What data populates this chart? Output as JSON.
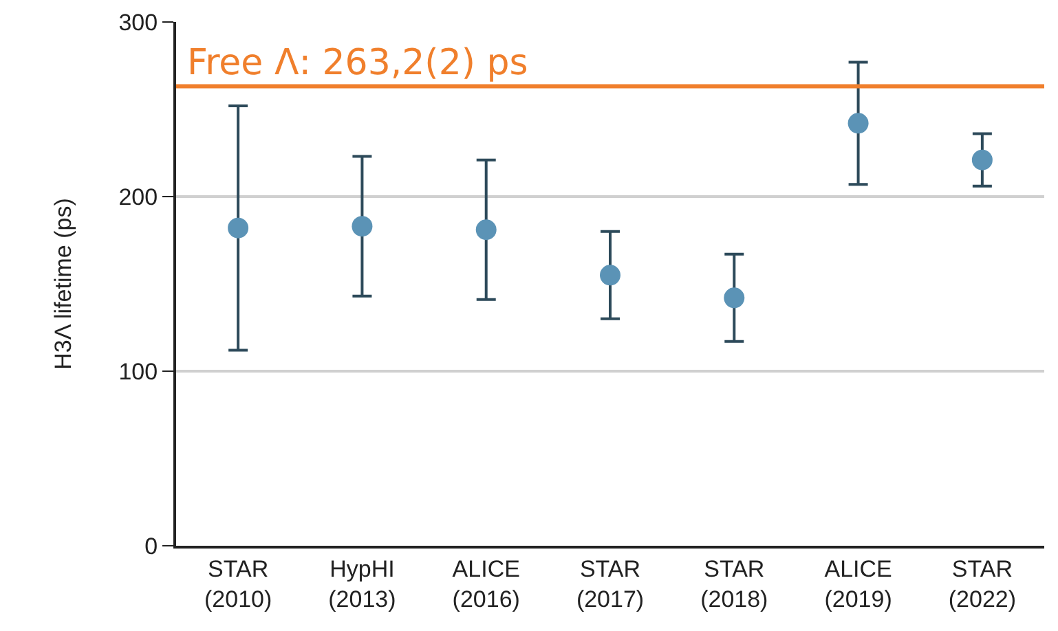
{
  "chart_data": {
    "type": "scatter",
    "ylabel": "H3Λ lifetime (ps)",
    "categories": [
      "STAR\n(2010)",
      "HypHI\n(2013)",
      "ALICE\n(2016)",
      "STAR\n(2017)",
      "STAR\n(2018)",
      "ALICE\n(2019)",
      "STAR\n(2022)"
    ],
    "series": [
      {
        "color": "#5b93b6",
        "values": [
          182,
          183,
          181,
          155,
          142,
          242,
          221
        ],
        "errors": [
          70,
          40,
          40,
          25,
          25,
          35,
          15
        ]
      }
    ],
    "ylim": [
      0,
      300
    ],
    "yticks": [
      0,
      100,
      200,
      300
    ],
    "grid": "y",
    "marker": "circle",
    "ref_lines": [
      {
        "axis": "y",
        "value": 263.2,
        "label": "Free Λ: 263,2(2) ps",
        "color": "#f07f2c"
      }
    ]
  }
}
